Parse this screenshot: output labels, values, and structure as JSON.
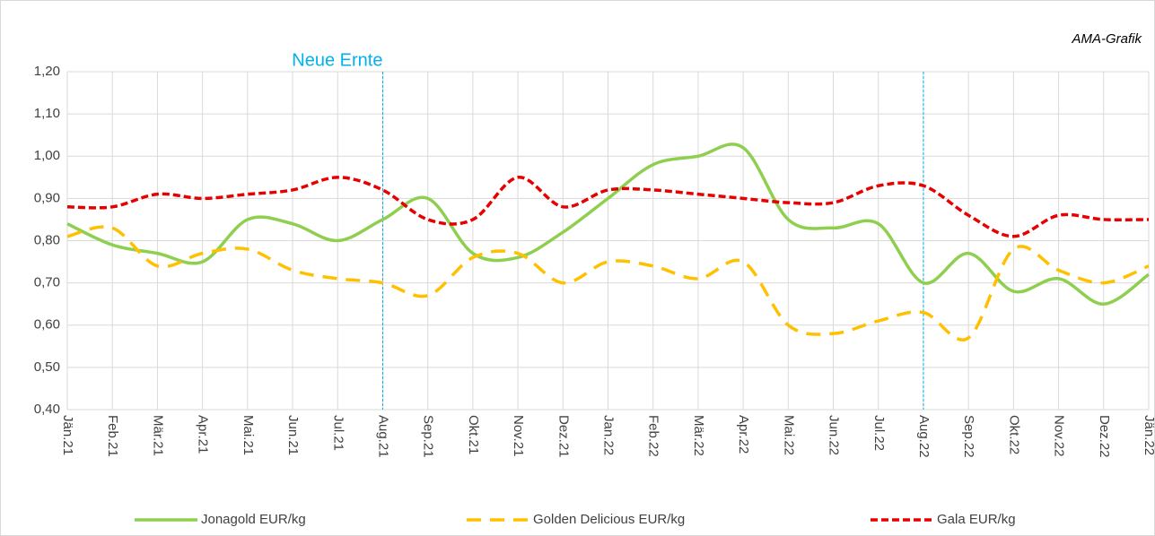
{
  "chart_data": {
    "type": "line",
    "annotation": "AMA-Grafik",
    "vline_label": "Neue Ernte",
    "vlines": [
      "Aug.21",
      "Aug.22"
    ],
    "categories": [
      "Jän.21",
      "Feb.21",
      "Mär.21",
      "Apr.21",
      "Mai.21",
      "Jun.21",
      "Jul.21",
      "Aug.21",
      "Sep.21",
      "Okt.21",
      "Nov.21",
      "Dez.21",
      "Jan.22",
      "Feb.22",
      "Mär.22",
      "Apr.22",
      "Mai.22",
      "Jun.22",
      "Jul.22",
      "Aug.22",
      "Sep.22",
      "Okt.22",
      "Nov.22",
      "Dez.22",
      "Jän.22"
    ],
    "series": [
      {
        "name": "Jonagold EUR/kg",
        "color": "#8fcf4f",
        "dash": "none",
        "values": [
          0.84,
          0.79,
          0.77,
          0.75,
          0.85,
          0.84,
          0.8,
          0.85,
          0.9,
          0.77,
          0.76,
          0.82,
          0.9,
          0.98,
          1.0,
          1.02,
          0.85,
          0.83,
          0.84,
          0.7,
          0.77,
          0.68,
          0.71,
          0.65,
          0.72
        ]
      },
      {
        "name": "Golden Delicious EUR/kg",
        "color": "#ffc000",
        "dash": "16 10",
        "values": [
          0.81,
          0.83,
          0.74,
          0.77,
          0.78,
          0.73,
          0.71,
          0.7,
          0.67,
          0.76,
          0.77,
          0.7,
          0.75,
          0.74,
          0.71,
          0.75,
          0.6,
          0.58,
          0.61,
          0.63,
          0.57,
          0.78,
          0.73,
          0.7,
          0.74
        ]
      },
      {
        "name": "Gala EUR/kg",
        "color": "#e60000",
        "dash": "8 4",
        "values": [
          0.88,
          0.88,
          0.91,
          0.9,
          0.91,
          0.92,
          0.95,
          0.92,
          0.85,
          0.85,
          0.95,
          0.88,
          0.92,
          0.92,
          0.91,
          0.9,
          0.89,
          0.89,
          0.93,
          0.93,
          0.86,
          0.81,
          0.86,
          0.85,
          0.85
        ]
      }
    ],
    "ylim": [
      0.4,
      1.2
    ],
    "yticks": [
      {
        "value": 0.4,
        "label": "0,40"
      },
      {
        "value": 0.5,
        "label": "0,50"
      },
      {
        "value": 0.6,
        "label": "0,60"
      },
      {
        "value": 0.7,
        "label": "0,70"
      },
      {
        "value": 0.8,
        "label": "0,80"
      },
      {
        "value": 0.9,
        "label": "0,90"
      },
      {
        "value": 1.0,
        "label": "1,00"
      },
      {
        "value": 1.1,
        "label": "1,10"
      },
      {
        "value": 1.2,
        "label": "1,20"
      }
    ],
    "grid": true,
    "legend": "bottom"
  }
}
